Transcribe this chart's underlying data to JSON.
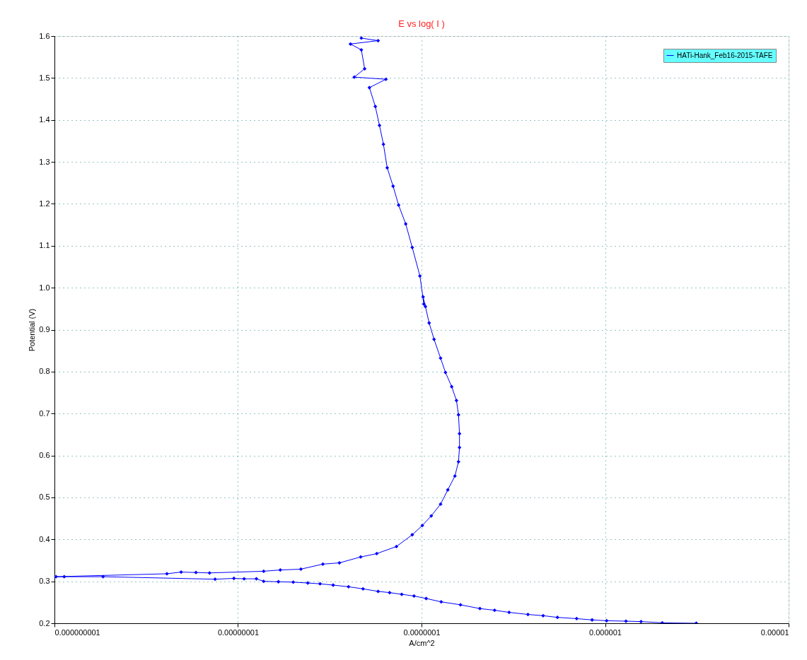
{
  "chart_data": {
    "type": "line",
    "title": "E vs log( I )",
    "xlabel": "A/cm^2",
    "ylabel": "Potential (V)",
    "log": "x",
    "grid": true,
    "legend": "top right",
    "marker": "diamond",
    "line_style": "solid",
    "xlim": [
      1e-09,
      1e-05
    ],
    "ylim": [
      0.2,
      1.6
    ],
    "xticks": [
      {
        "value": 1e-09,
        "label": "0.000000001"
      },
      {
        "value": 1e-08,
        "label": "0.00000001"
      },
      {
        "value": 1e-07,
        "label": "0.0000001"
      },
      {
        "value": 1e-06,
        "label": "0.000001"
      },
      {
        "value": 1e-05,
        "label": "0.00001"
      }
    ],
    "yticks": [
      0.2,
      0.3,
      0.4,
      0.5,
      0.6,
      0.7,
      0.8,
      0.9,
      {
        "value": 1.0,
        "label": "1.0"
      },
      1.1,
      1.2,
      1.3,
      1.4,
      1.5,
      1.6
    ],
    "series": [
      {
        "name": "HATi-Hank_Feb16-2015-TAFE",
        "color": "#0000ff",
        "x": [
          3.14e-06,
          2.05e-06,
          1.57e-06,
          1.3e-06,
          1.02e-06,
          8.5e-07,
          7e-07,
          5.5e-07,
          4.6e-07,
          3.8e-07,
          3e-07,
          2.5e-07,
          2.08e-07,
          1.63e-07,
          1.28e-07,
          1.06e-07,
          9.1e-08,
          7.8e-08,
          6.7e-08,
          5.8e-08,
          4.8e-08,
          4e-08,
          3.3e-08,
          2.8e-08,
          2.4e-08,
          2e-08,
          1.66e-08,
          1.38e-08,
          1.26e-08,
          1.08e-08,
          9.5e-09,
          7.5e-09,
          1.84e-09,
          1.13e-09,
          1.02e-09,
          4.1e-09,
          4.9e-09,
          5.9e-09,
          7e-09,
          1.38e-08,
          1.7e-08,
          2.2e-08,
          2.9e-08,
          3.57e-08,
          4.66e-08,
          5.7e-08,
          7.3e-08,
          8.9e-08,
          1.01e-07,
          1.13e-07,
          1.27e-07,
          1.39e-07,
          1.52e-07,
          1.59e-07,
          1.61e-07,
          1.61e-07,
          1.59e-07,
          1.55e-07,
          1.46e-07,
          1.35e-07,
          1.27e-07,
          1.17e-07,
          1.1e-07,
          1.05e-07,
          1.02e-07,
          1.03e-07,
          9.8e-08,
          8.9e-08,
          8.2e-08,
          7.5e-08,
          7e-08,
          6.5e-08,
          6.2e-08,
          5.9e-08,
          5.6e-08,
          5.2e-08,
          6.4e-08,
          4.3e-08,
          4.9e-08,
          4.7e-08,
          4.1e-08,
          5.8e-08,
          4.7e-08
        ],
        "values": [
          0.2,
          0.201,
          0.204,
          0.205,
          0.206,
          0.208,
          0.211,
          0.214,
          0.218,
          0.221,
          0.226,
          0.231,
          0.235,
          0.244,
          0.251,
          0.259,
          0.265,
          0.269,
          0.273,
          0.276,
          0.282,
          0.287,
          0.291,
          0.294,
          0.296,
          0.298,
          0.299,
          0.3,
          0.306,
          0.306,
          0.307,
          0.305,
          0.311,
          0.311,
          0.311,
          0.318,
          0.322,
          0.321,
          0.32,
          0.324,
          0.327,
          0.329,
          0.341,
          0.344,
          0.358,
          0.366,
          0.383,
          0.411,
          0.433,
          0.456,
          0.484,
          0.518,
          0.551,
          0.585,
          0.619,
          0.652,
          0.697,
          0.731,
          0.764,
          0.798,
          0.832,
          0.877,
          0.916,
          0.955,
          0.978,
          0.961,
          1.028,
          1.096,
          1.152,
          1.197,
          1.242,
          1.286,
          1.342,
          1.387,
          1.432,
          1.477,
          1.497,
          1.502,
          1.522,
          1.567,
          1.581,
          1.589,
          1.595
        ]
      }
    ]
  }
}
